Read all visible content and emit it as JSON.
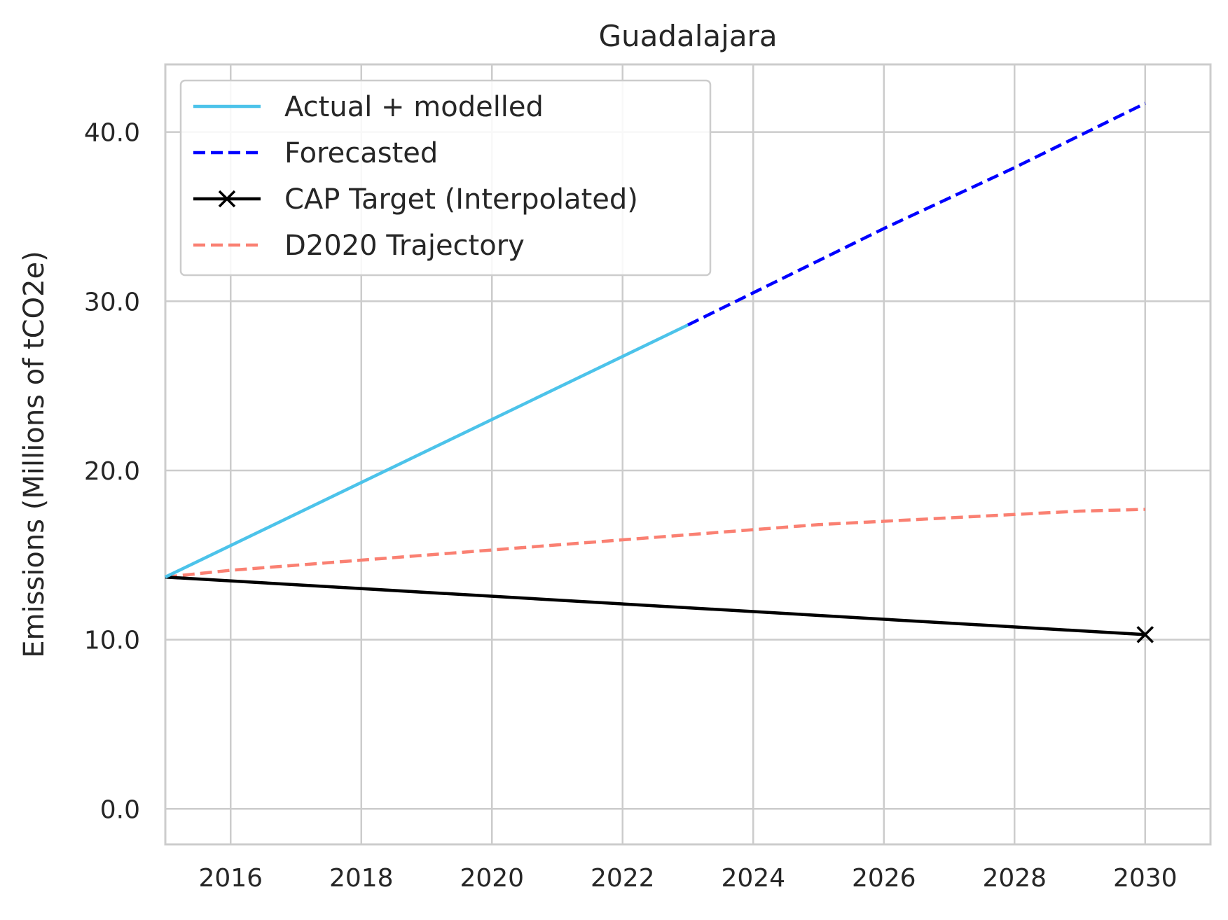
{
  "chart_data": {
    "type": "line",
    "title": "Guadalajara",
    "xlabel": "",
    "ylabel": "Emissions (Millions of tCO2e)",
    "xlim": [
      2015,
      2031
    ],
    "ylim": [
      -2.1,
      44.0
    ],
    "x_ticks": [
      2016,
      2018,
      2020,
      2022,
      2024,
      2026,
      2028,
      2030
    ],
    "x_tick_labels": [
      "2016",
      "2018",
      "2020",
      "2022",
      "2024",
      "2026",
      "2028",
      "2030"
    ],
    "y_ticks": [
      0,
      10,
      20,
      30,
      40
    ],
    "y_tick_labels": [
      "0.0",
      "10.0",
      "20.0",
      "30.0",
      "40.0"
    ],
    "grid": true,
    "legend_position": "upper-left",
    "series": [
      {
        "name": "Actual + modelled",
        "color": "#4cc3ea",
        "style": "solid",
        "marker": "none",
        "x": [
          2015,
          2023
        ],
        "y": [
          13.7,
          28.6
        ]
      },
      {
        "name": "Forecasted",
        "color": "#0000ff",
        "style": "dashed",
        "marker": "none",
        "x": [
          2023,
          2024,
          2025,
          2026,
          2027,
          2028,
          2029,
          2030
        ],
        "y": [
          28.6,
          30.5,
          32.4,
          34.3,
          36.1,
          37.9,
          39.8,
          41.7
        ]
      },
      {
        "name": "CAP Target (Interpolated)",
        "color": "#000000",
        "style": "solid",
        "marker": "x-end",
        "x": [
          2015,
          2030
        ],
        "y": [
          13.7,
          10.3
        ]
      },
      {
        "name": "D2020 Trajectory",
        "color": "#fa8072",
        "style": "dashed",
        "marker": "none",
        "x": [
          2015,
          2016,
          2017,
          2018,
          2019,
          2020,
          2021,
          2022,
          2023,
          2024,
          2025,
          2026,
          2027,
          2028,
          2029,
          2030
        ],
        "y": [
          13.7,
          14.1,
          14.4,
          14.7,
          15.0,
          15.3,
          15.6,
          15.9,
          16.2,
          16.5,
          16.8,
          17.0,
          17.2,
          17.4,
          17.6,
          17.7
        ]
      }
    ]
  }
}
